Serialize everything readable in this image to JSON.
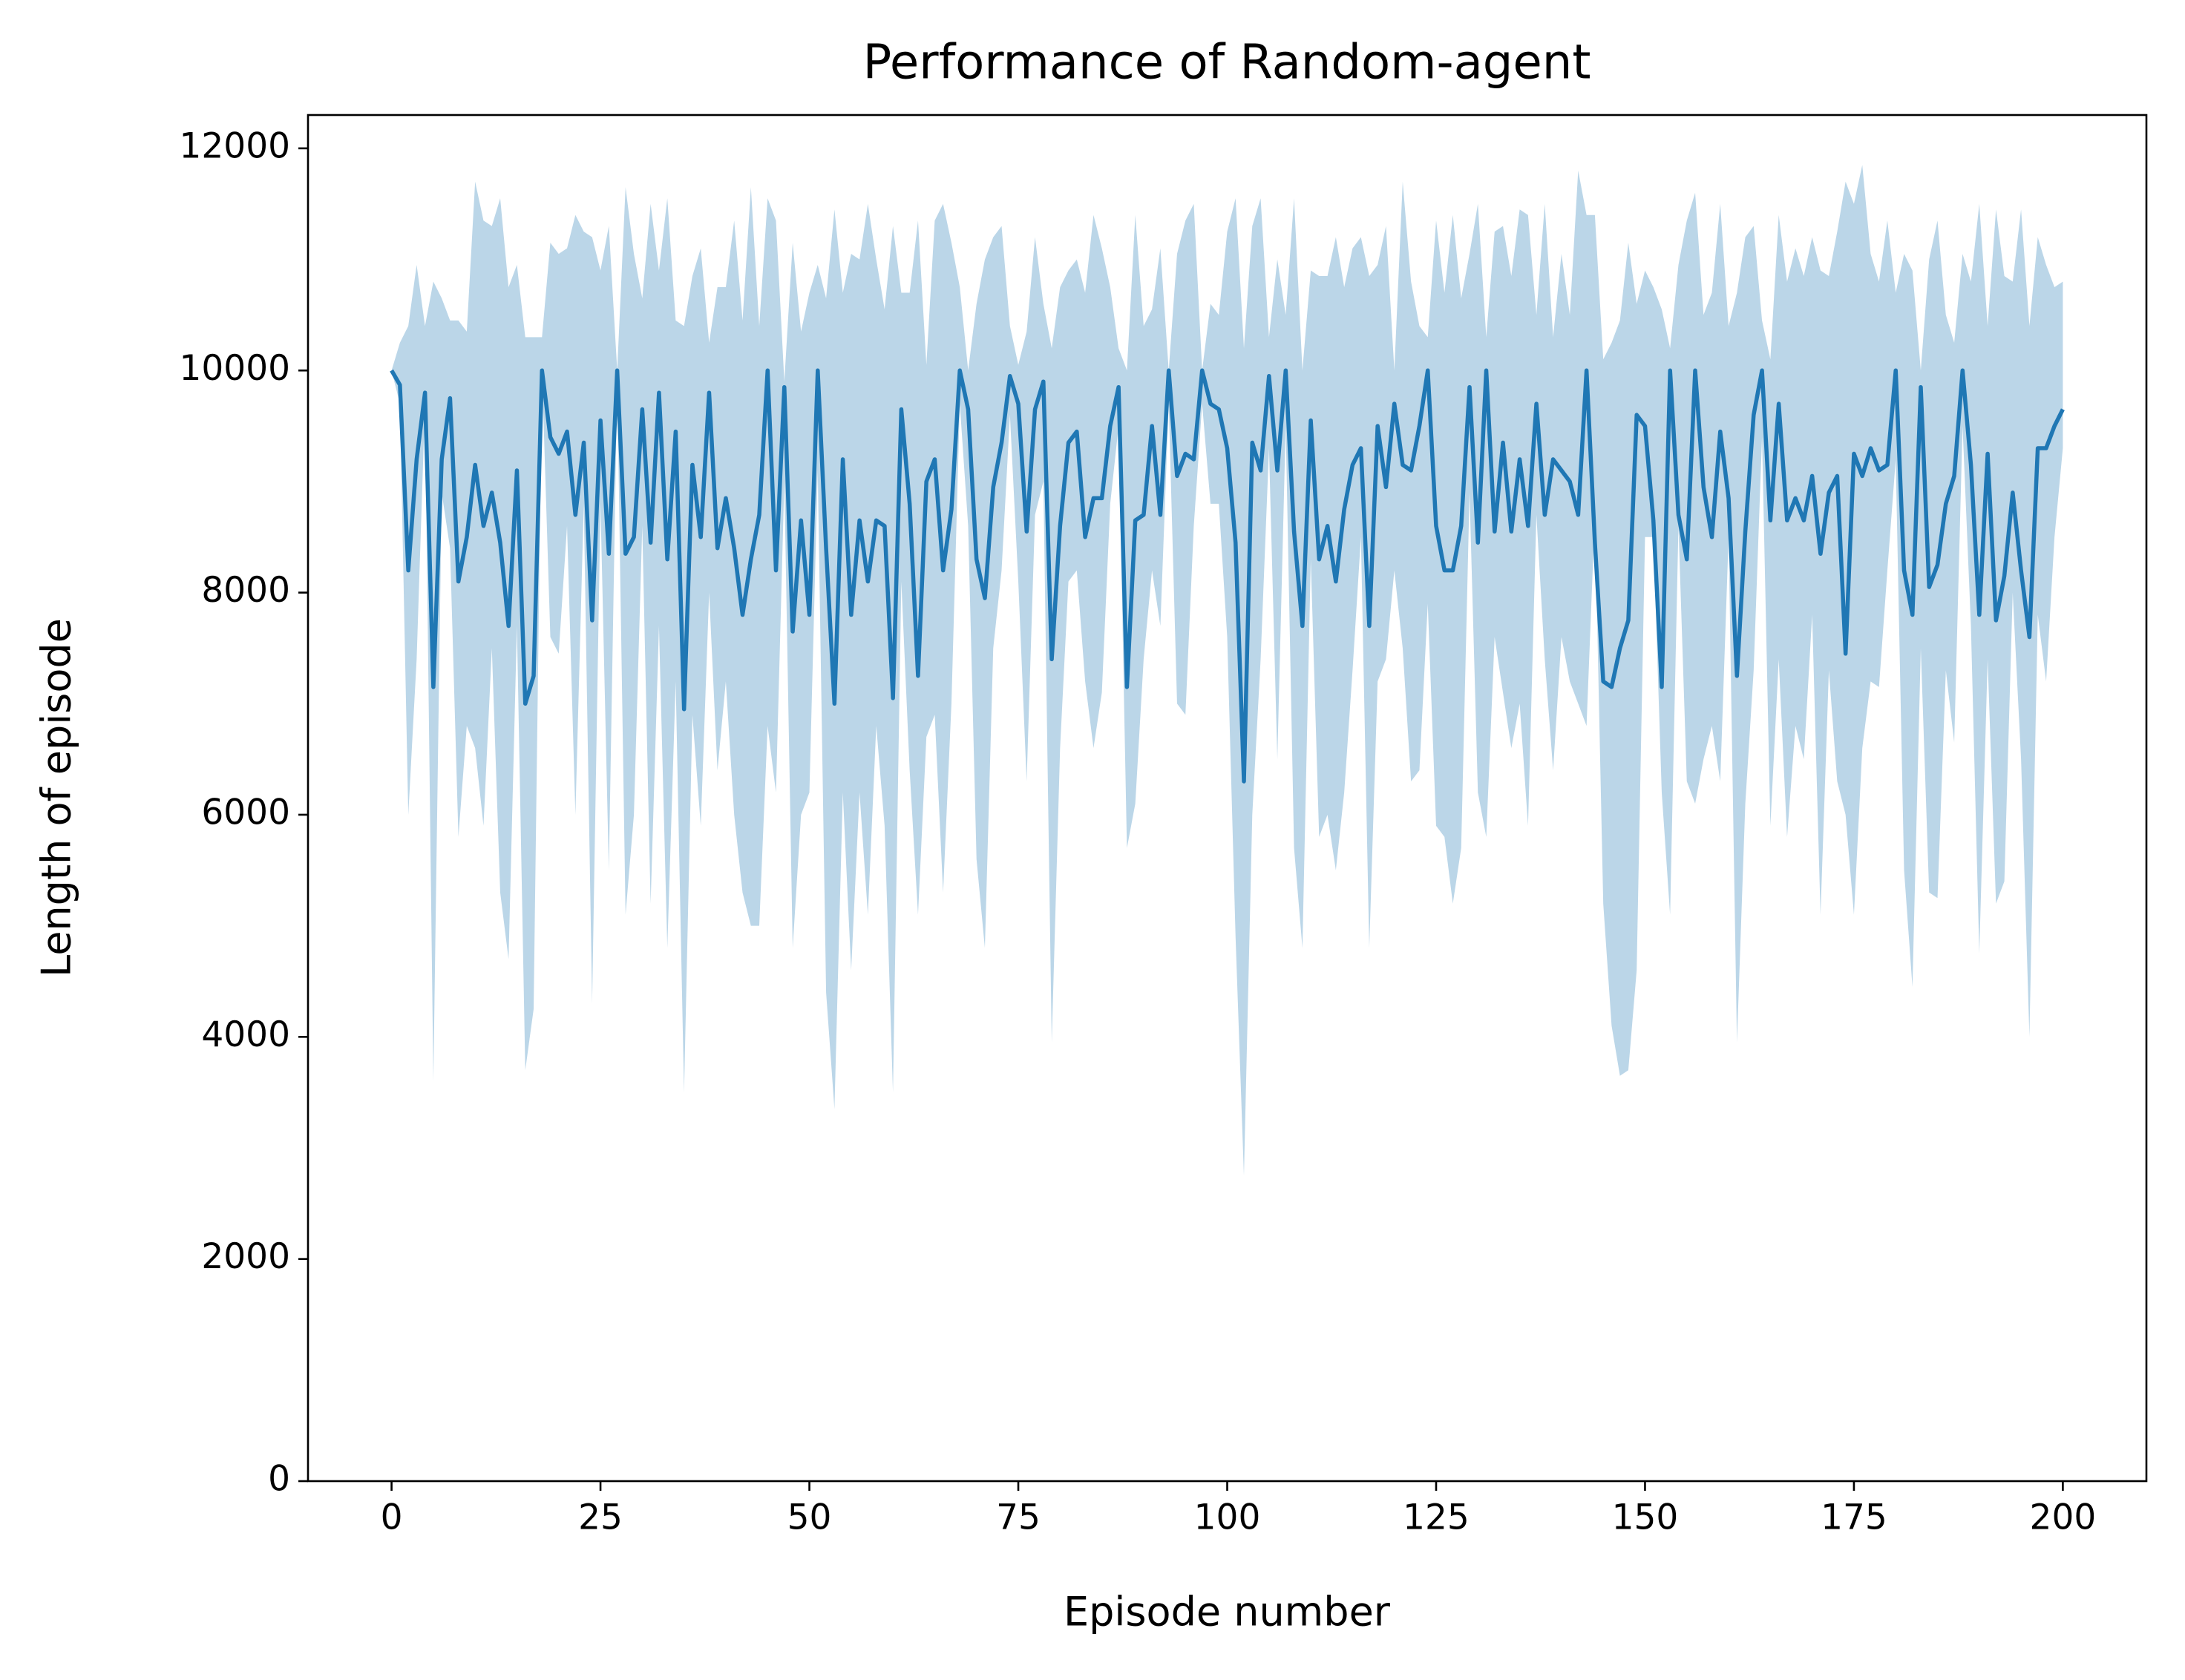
{
  "chart_data": {
    "type": "line",
    "title": "Performance of Random-agent",
    "x_label": "Episode number",
    "y_label": "Length of episode",
    "x": [
      0,
      1,
      2,
      3,
      4,
      5,
      6,
      7,
      8,
      9,
      10,
      11,
      12,
      13,
      14,
      15,
      16,
      17,
      18,
      19,
      20,
      21,
      22,
      23,
      24,
      25,
      26,
      27,
      28,
      29,
      30,
      31,
      32,
      33,
      34,
      35,
      36,
      37,
      38,
      39,
      40,
      41,
      42,
      43,
      44,
      45,
      46,
      47,
      48,
      49,
      50,
      51,
      52,
      53,
      54,
      55,
      56,
      57,
      58,
      59,
      60,
      61,
      62,
      63,
      64,
      65,
      66,
      67,
      68,
      69,
      70,
      71,
      72,
      73,
      74,
      75,
      76,
      77,
      78,
      79,
      80,
      81,
      82,
      83,
      84,
      85,
      86,
      87,
      88,
      89,
      90,
      91,
      92,
      93,
      94,
      95,
      96,
      97,
      98,
      99,
      100,
      101,
      102,
      103,
      104,
      105,
      106,
      107,
      108,
      109,
      110,
      111,
      112,
      113,
      114,
      115,
      116,
      117,
      118,
      119,
      120,
      121,
      122,
      123,
      124,
      125,
      126,
      127,
      128,
      129,
      130,
      131,
      132,
      133,
      134,
      135,
      136,
      137,
      138,
      139,
      140,
      141,
      142,
      143,
      144,
      145,
      146,
      147,
      148,
      149,
      150,
      151,
      152,
      153,
      154,
      155,
      156,
      157,
      158,
      159,
      160,
      161,
      162,
      163,
      164,
      165,
      166,
      167,
      168,
      169,
      170,
      171,
      172,
      173,
      174,
      175,
      176,
      177,
      178,
      179,
      180,
      181,
      182,
      183,
      184,
      185,
      186,
      187,
      188,
      189,
      190,
      191,
      192,
      193,
      194,
      195,
      196,
      197,
      198,
      199,
      200
    ],
    "values": [
      10000,
      9870,
      8200,
      9200,
      9800,
      7150,
      9200,
      9750,
      8100,
      8500,
      9150,
      8600,
      8900,
      8450,
      7700,
      9100,
      7000,
      7250,
      10000,
      9400,
      9250,
      9450,
      8700,
      9350,
      7750,
      9550,
      8350,
      10000,
      8350,
      8500,
      9650,
      8450,
      9800,
      8300,
      9450,
      6950,
      9150,
      8500,
      9800,
      8400,
      8850,
      8400,
      7800,
      8300,
      8700,
      10000,
      8200,
      9850,
      7650,
      8650,
      7800,
      10000,
      8400,
      7000,
      9200,
      7800,
      8650,
      8100,
      8650,
      8600,
      7050,
      9650,
      8800,
      7250,
      9000,
      9200,
      8200,
      8750,
      10000,
      9650,
      8300,
      7950,
      8950,
      9350,
      9950,
      9700,
      8550,
      9650,
      9900,
      7400,
      8600,
      9350,
      9450,
      8500,
      8850,
      8850,
      9500,
      9850,
      7150,
      8650,
      8700,
      9500,
      8700,
      10000,
      9050,
      9250,
      9200,
      10000,
      9700,
      9650,
      9300,
      8450,
      6300,
      9350,
      9100,
      9950,
      9100,
      10000,
      8550,
      7700,
      9550,
      8300,
      8600,
      8100,
      8750,
      9150,
      9300,
      7700,
      9500,
      8950,
      9700,
      9150,
      9100,
      9500,
      10000,
      8600,
      8200,
      8200,
      8600,
      9850,
      8450,
      10000,
      8550,
      9350,
      8550,
      9200,
      8600,
      9700,
      8700,
      9200,
      9100,
      9000,
      8700,
      10000,
      8450,
      7200,
      7150,
      7500,
      7750,
      9600,
      9500,
      8650,
      7150,
      10000,
      8700,
      8300,
      10000,
      8950,
      8500,
      9450,
      8850,
      7250,
      8550,
      9600,
      10000,
      8650,
      9700,
      8650,
      8850,
      8650,
      9050,
      8350,
      8900,
      9050,
      7450,
      9250,
      9050,
      9300,
      9100,
      9150,
      10000,
      8200,
      7800,
      9850,
      8050,
      8250,
      8800,
      9050,
      10000,
      9150,
      7800,
      9250,
      7750,
      8150,
      8900,
      8200,
      7600,
      9300,
      9300,
      9500,
      9650
    ],
    "color": "#1f77b4",
    "band": {
      "color": "#bbd6e8",
      "upper": [
        10000,
        10250,
        10400,
        10950,
        10400,
        10800,
        10650,
        10450,
        10450,
        10350,
        11700,
        11350,
        11300,
        11550,
        10750,
        10950,
        10300,
        10300,
        10300,
        11150,
        11050,
        11100,
        11400,
        11250,
        11200,
        10900,
        11300,
        10000,
        11650,
        11050,
        10650,
        11500,
        10900,
        11550,
        10450,
        10400,
        10850,
        11100,
        10250,
        10750,
        10750,
        11350,
        10450,
        11650,
        10400,
        11550,
        11350,
        9900,
        11150,
        10350,
        10700,
        10950,
        10650,
        11450,
        10700,
        11050,
        11000,
        11500,
        11000,
        10550,
        11300,
        10700,
        10700,
        11350,
        10050,
        11350,
        11500,
        11150,
        10750,
        10000,
        10600,
        11000,
        11200,
        11300,
        10400,
        10050,
        10350,
        11200,
        10600,
        10200,
        10750,
        10900,
        11000,
        10700,
        11400,
        11100,
        10750,
        10200,
        10000,
        11400,
        10400,
        10550,
        11100,
        10000,
        11050,
        11350,
        11500,
        10000,
        10600,
        10500,
        11250,
        11550,
        10200,
        11300,
        11550,
        10300,
        11000,
        10500,
        11550,
        10000,
        10900,
        10850,
        10850,
        11200,
        10750,
        11100,
        11200,
        10850,
        10950,
        11300,
        10000,
        11700,
        10800,
        10400,
        10300,
        11350,
        10700,
        11400,
        10650,
        11050,
        11500,
        10300,
        11250,
        11300,
        10850,
        11450,
        11400,
        10500,
        11500,
        10300,
        11050,
        10500,
        11800,
        11400,
        11400,
        10100,
        10250,
        10450,
        11150,
        10600,
        10900,
        10750,
        10550,
        10200,
        10950,
        11350,
        11600,
        10500,
        10700,
        11500,
        10400,
        10700,
        11200,
        11300,
        10450,
        10100,
        11400,
        10800,
        11100,
        10850,
        11200,
        10900,
        10850,
        11250,
        11700,
        11500,
        11850,
        11050,
        10800,
        11350,
        10700,
        11050,
        10900,
        10000,
        11000,
        11350,
        10500,
        10250,
        11050,
        10800,
        11500,
        10400,
        11450,
        10850,
        10800,
        11450,
        10400,
        11200,
        10950,
        10750,
        10800
      ],
      "lower": [
        10000,
        9700,
        6000,
        7400,
        9700,
        3600,
        8900,
        8400,
        5800,
        6800,
        6600,
        5900,
        7500,
        5300,
        4700,
        7700,
        3700,
        4250,
        10000,
        7600,
        7450,
        8600,
        6000,
        8800,
        4300,
        8800,
        5500,
        9900,
        5100,
        6000,
        8600,
        5200,
        7700,
        4800,
        7200,
        3500,
        6900,
        5900,
        8000,
        6400,
        7200,
        6000,
        5300,
        5000,
        5000,
        6800,
        6200,
        9000,
        4800,
        6000,
        6200,
        9100,
        4400,
        3350,
        6200,
        4600,
        6200,
        5100,
        6800,
        5900,
        3500,
        8100,
        6400,
        5100,
        6700,
        6900,
        5300,
        7000,
        9700,
        8600,
        5600,
        4800,
        7500,
        8200,
        9600,
        8100,
        6300,
        8700,
        9000,
        3950,
        6600,
        8100,
        8200,
        7200,
        6600,
        7100,
        8800,
        9500,
        5700,
        6100,
        7400,
        8200,
        7700,
        9700,
        7000,
        6900,
        8600,
        9700,
        8800,
        8800,
        7600,
        4900,
        2750,
        6000,
        7400,
        9300,
        6500,
        9500,
        5700,
        4800,
        8300,
        5800,
        6000,
        5500,
        6200,
        7300,
        8500,
        4800,
        7200,
        7400,
        8200,
        7500,
        6300,
        6400,
        7900,
        5900,
        5800,
        5200,
        5700,
        8900,
        6200,
        5800,
        7600,
        7100,
        6600,
        7000,
        5900,
        8700,
        7400,
        6400,
        7600,
        7200,
        7000,
        6800,
        8700,
        5200,
        4100,
        3650,
        3700,
        4600,
        8500,
        8500,
        6200,
        5100,
        8600,
        6300,
        6100,
        6500,
        6800,
        6300,
        8500,
        3950,
        6100,
        7300,
        9400,
        5900,
        7400,
        5800,
        6800,
        6500,
        7800,
        5100,
        7300,
        6300,
        6000,
        5100,
        6600,
        7200,
        7150,
        8200,
        9200,
        5500,
        4450,
        7500,
        5300,
        5250,
        7300,
        6650,
        9500,
        7700,
        4750,
        7400,
        5200,
        5400,
        8000,
        6500,
        4000,
        7800,
        7200,
        8500,
        9300
      ]
    },
    "xlim": [
      -10,
      210
    ],
    "ylim": [
      0,
      12300
    ],
    "xticks": [
      0,
      25,
      50,
      75,
      100,
      125,
      150,
      175,
      200
    ],
    "yticks": [
      0,
      2000,
      4000,
      6000,
      8000,
      10000,
      12000
    ]
  }
}
